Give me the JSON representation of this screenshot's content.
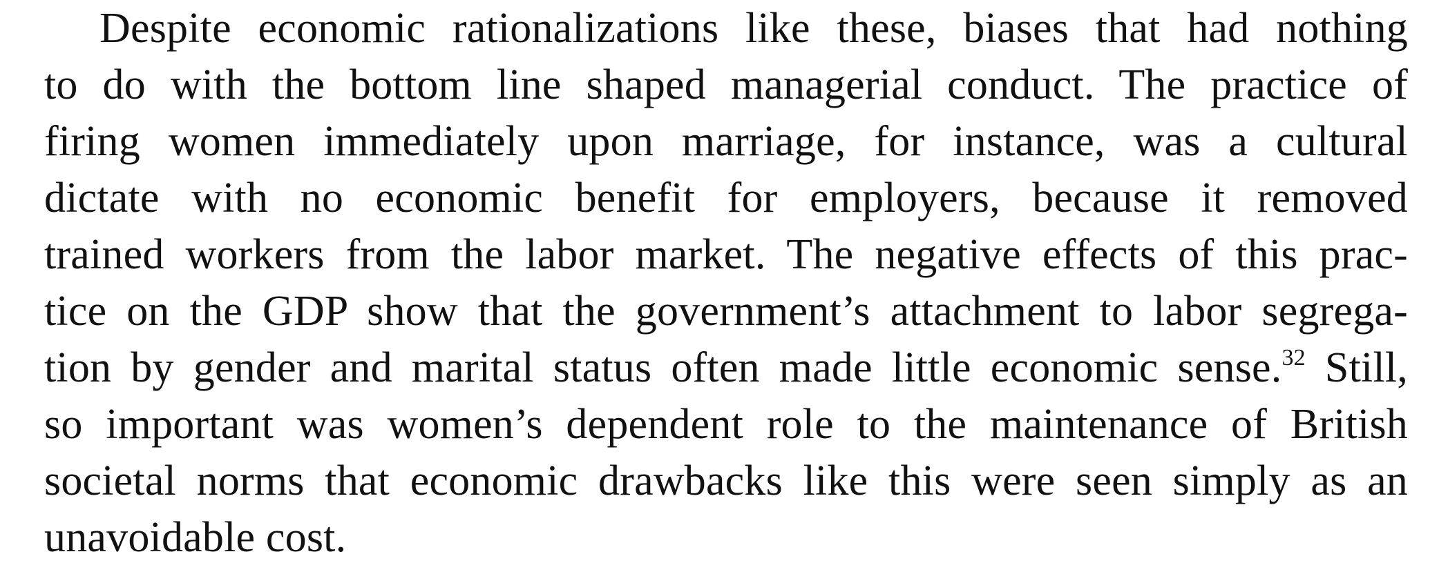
{
  "paragraph": {
    "lines": [
      "Despite economic rationalizations like these, biases that had nothing",
      "to do with the bottom line shaped managerial conduct. The practice of",
      "firing women immediately upon marriage, for instance, was a cultural",
      "dictate with no economic benefit for employers, because it removed",
      "trained workers from the labor market. The negative effects of this prac-",
      "tice on the GDP show that the government’s attachment to labor segrega-",
      "tion by gender and marital status often made little economic sense.",
      "so important was women’s dependent role to the maintenance of British",
      "societal norms that economic drawbacks like this were seen simply as an",
      "unavoidable cost."
    ],
    "footnote_marker": "32",
    "line7_tail": " Still,"
  }
}
